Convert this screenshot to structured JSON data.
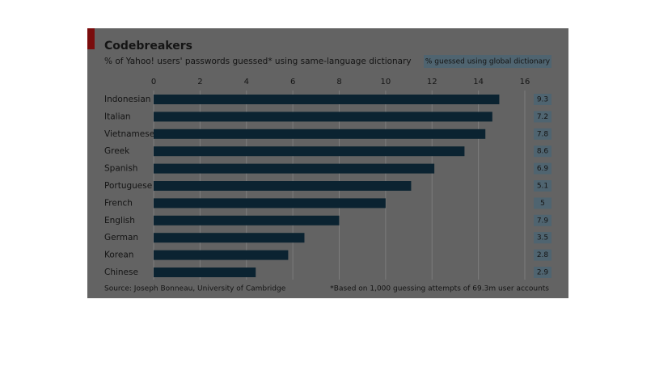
{
  "chart_data": {
    "type": "bar",
    "orientation": "horizontal",
    "title": "Codebreakers",
    "subtitle": "% of Yahoo! users' passwords guessed* using same-language dictionary",
    "categories": [
      "Indonesian",
      "Italian",
      "Vietnamese",
      "Greek",
      "Spanish",
      "Portuguese",
      "French",
      "English",
      "German",
      "Korean",
      "Chinese"
    ],
    "values": [
      14.9,
      14.6,
      14.3,
      13.4,
      12.1,
      11.1,
      10.0,
      8.0,
      6.5,
      5.8,
      4.4
    ],
    "color": "#0b2331",
    "xlim": [
      0,
      16
    ],
    "xticks": [
      0,
      2,
      4,
      6,
      8,
      10,
      12,
      14,
      16
    ],
    "grid": true,
    "global_dictionary": {
      "label": "% guessed using global dictionary",
      "values": [
        9.3,
        7.2,
        7.8,
        8.6,
        6.9,
        5.1,
        5.0,
        7.9,
        3.5,
        2.8,
        2.9
      ]
    },
    "source": "Source: Joseph Bonneau, University of Cambridge",
    "footnote": "*Based on 1,000 guessing attempts of 69.3m user accounts"
  }
}
